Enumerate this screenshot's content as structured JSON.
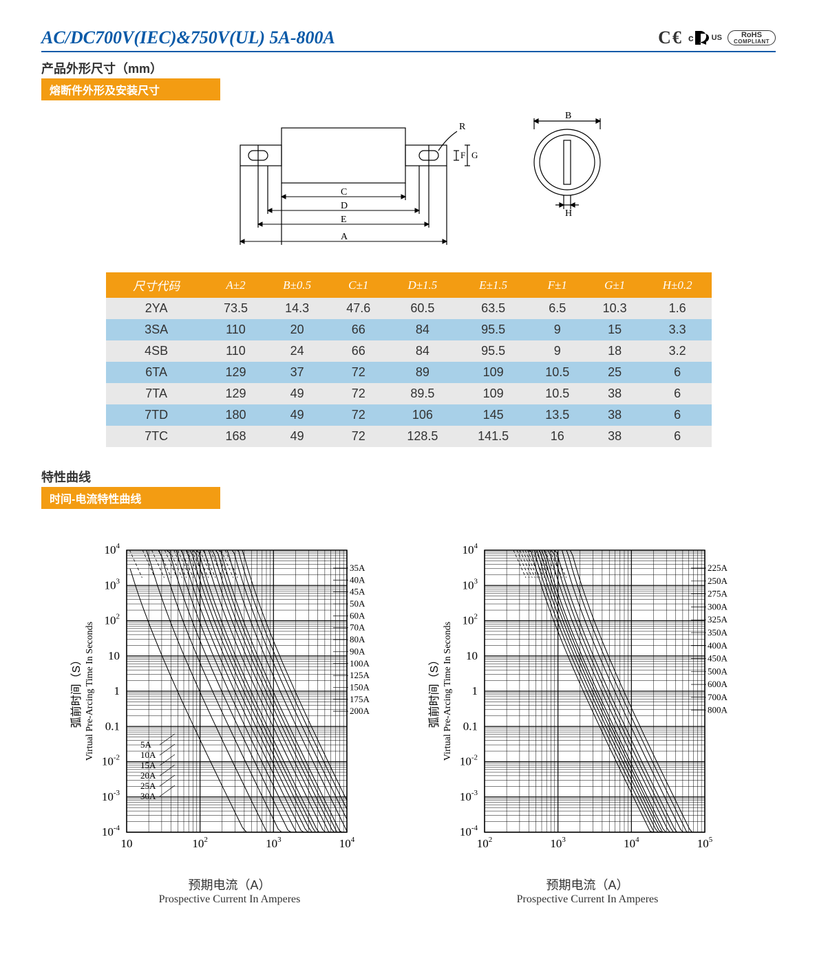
{
  "header": {
    "title": "AC/DC700V(IEC)&750V(UL)  5A-800A",
    "certs": {
      "ce": "CE",
      "cru_c": "c",
      "cru_us": "US",
      "rohs_top": "RoHS",
      "rohs_bot": "COMPLIANT"
    }
  },
  "sec_dim": {
    "title": "产品外形尺寸（mm）",
    "subtitle": "熔断件外形及安装尺寸"
  },
  "diagram": {
    "labels": {
      "A": "A",
      "B": "B",
      "C": "C",
      "D": "D",
      "E": "E",
      "F": "F",
      "G": "G",
      "H": "H",
      "R": "R"
    }
  },
  "table": {
    "headers": [
      "尺寸代码",
      "A±2",
      "B±0.5",
      "C±1",
      "D±1.5",
      "E±1.5",
      "F±1",
      "G±1",
      "H±0.2"
    ],
    "rows": [
      {
        "cls": "grey",
        "c": [
          "2YA",
          "73.5",
          "14.3",
          "47.6",
          "60.5",
          "63.5",
          "6.5",
          "10.3",
          "1.6"
        ]
      },
      {
        "cls": "blue",
        "c": [
          "3SA",
          "110",
          "20",
          "66",
          "84",
          "95.5",
          "9",
          "15",
          "3.3"
        ]
      },
      {
        "cls": "grey",
        "c": [
          "4SB",
          "110",
          "24",
          "66",
          "84",
          "95.5",
          "9",
          "18",
          "3.2"
        ]
      },
      {
        "cls": "blue",
        "c": [
          "6TA",
          "129",
          "37",
          "72",
          "89",
          "109",
          "10.5",
          "25",
          "6"
        ]
      },
      {
        "cls": "grey",
        "c": [
          "7TA",
          "129",
          "49",
          "72",
          "89.5",
          "109",
          "10.5",
          "38",
          "6"
        ]
      },
      {
        "cls": "blue",
        "c": [
          "7TD",
          "180",
          "49",
          "72",
          "106",
          "145",
          "13.5",
          "38",
          "6"
        ]
      },
      {
        "cls": "grey",
        "c": [
          "7TC",
          "168",
          "49",
          "72",
          "128.5",
          "141.5",
          "16",
          "38",
          "6"
        ]
      }
    ]
  },
  "sec_curve": {
    "title": "特性曲线",
    "subtitle": "时间-电流特性曲线"
  },
  "charts": {
    "ylabel_cn": "弧前时间（S）",
    "ylabel_en": "Virtual Pre-Arcing Time In Seconds",
    "xlabel_cn": "预期电流（A）",
    "xlabel_en": "Prospective Current In Amperes",
    "yticks": [
      "10⁴",
      "10³",
      "10²",
      "10",
      "1",
      "0.1",
      "10⁻²",
      "10⁻³",
      "10⁻⁴"
    ],
    "left": {
      "xticks": [
        "10",
        "10²",
        "10³",
        "10⁴"
      ],
      "x_exp": [
        1,
        2,
        3,
        4
      ],
      "series_low": [
        "5A",
        "10A",
        "15A",
        "20A",
        "25A",
        "30A"
      ],
      "series_high": [
        "35A",
        "40A",
        "45A",
        "50A",
        "60A",
        "70A",
        "80A",
        "90A",
        "100A",
        "125A",
        "150A",
        "175A",
        "200A"
      ]
    },
    "right": {
      "xticks": [
        "10²",
        "10³",
        "10⁴",
        "10⁵"
      ],
      "x_exp": [
        2,
        3,
        4,
        5
      ],
      "series": [
        "225A",
        "250A",
        "275A",
        "300A",
        "325A",
        "350A",
        "400A",
        "450A",
        "500A",
        "600A",
        "700A",
        "800A"
      ]
    },
    "grid_color": "#000",
    "line_color": "#000",
    "font": "Times New Roman"
  }
}
